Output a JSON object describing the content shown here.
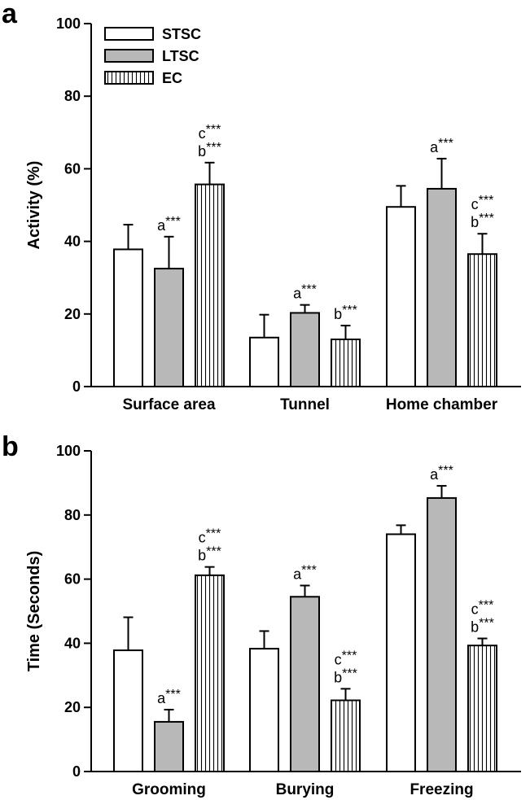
{
  "legend": [
    "STSC",
    "LTSC",
    "EC"
  ],
  "colors": {
    "STSC": "#ffffff",
    "LTSC": "#b8b8b8",
    "EC": "#ffffff",
    "stroke": "#000000"
  },
  "chart_data": [
    {
      "panel": "a",
      "type": "bar",
      "ylabel": "Activity (%)",
      "xlabel": "",
      "ylim": [
        0,
        100
      ],
      "yticks": [
        0,
        20,
        40,
        60,
        80,
        100
      ],
      "categories": [
        "Surface area",
        "Tunnel",
        "Home chamber"
      ],
      "series": [
        {
          "name": "STSC",
          "values": [
            37.8,
            13.5,
            49.5
          ],
          "errors": [
            6.8,
            6.3,
            5.8
          ]
        },
        {
          "name": "LTSC",
          "values": [
            32.5,
            20.3,
            54.5
          ],
          "errors": [
            8.8,
            2.2,
            8.3
          ]
        },
        {
          "name": "EC",
          "values": [
            55.7,
            13.0,
            36.5
          ],
          "errors": [
            6.0,
            3.8,
            5.6
          ]
        }
      ],
      "annotations": [
        {
          "category": 0,
          "series": 1,
          "lines": [
            "a***"
          ]
        },
        {
          "category": 0,
          "series": 2,
          "lines": [
            "c***",
            "b***"
          ]
        },
        {
          "category": 1,
          "series": 1,
          "lines": [
            "a***"
          ]
        },
        {
          "category": 1,
          "series": 2,
          "lines": [
            "b***"
          ]
        },
        {
          "category": 2,
          "series": 1,
          "lines": [
            "a***"
          ]
        },
        {
          "category": 2,
          "series": 2,
          "lines": [
            "c***",
            "b***"
          ]
        }
      ]
    },
    {
      "panel": "b",
      "type": "bar",
      "ylabel": "Time (Seconds)",
      "xlabel": "",
      "ylim": [
        0,
        100
      ],
      "yticks": [
        0,
        20,
        40,
        60,
        80,
        100
      ],
      "categories": [
        "Grooming",
        "Burying",
        "Freezing"
      ],
      "series": [
        {
          "name": "STSC",
          "values": [
            37.8,
            38.3,
            74.0
          ],
          "errors": [
            10.3,
            5.5,
            2.8
          ]
        },
        {
          "name": "LTSC",
          "values": [
            15.5,
            54.5,
            85.3
          ],
          "errors": [
            3.8,
            3.5,
            3.8
          ]
        },
        {
          "name": "EC",
          "values": [
            61.2,
            22.2,
            39.3
          ],
          "errors": [
            2.6,
            3.6,
            2.2
          ]
        }
      ],
      "annotations": [
        {
          "category": 0,
          "series": 1,
          "lines": [
            "a***"
          ]
        },
        {
          "category": 0,
          "series": 2,
          "lines": [
            "c***",
            "b***"
          ]
        },
        {
          "category": 1,
          "series": 1,
          "lines": [
            "a***"
          ]
        },
        {
          "category": 1,
          "series": 2,
          "lines": [
            "c***",
            "b***"
          ]
        },
        {
          "category": 2,
          "series": 1,
          "lines": [
            "a***"
          ]
        },
        {
          "category": 2,
          "series": 2,
          "lines": [
            "c***",
            "b***"
          ]
        }
      ]
    }
  ]
}
